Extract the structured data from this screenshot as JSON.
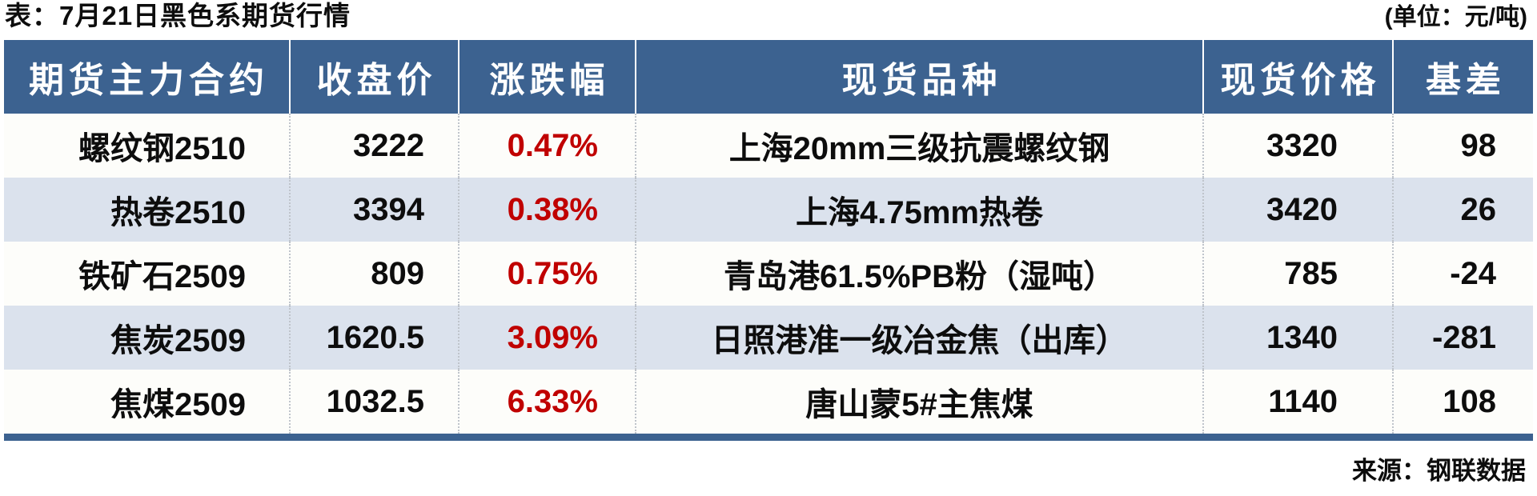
{
  "chart_data": {
    "type": "table",
    "title": "表：7月21日黑色系期货行情",
    "unit": "(单位：元/吨)",
    "source": "来源：钢联数据",
    "columns": [
      "期货主力合约",
      "收盘价",
      "涨跌幅",
      "现货品种",
      "现货价格",
      "基差"
    ],
    "rows": [
      [
        "螺纹钢2510",
        "3222",
        "0.47%",
        "上海20mm三级抗震螺纹钢",
        "3320",
        "98"
      ],
      [
        "热卷2510",
        "3394",
        "0.38%",
        "上海4.75mm热卷",
        "3420",
        "26"
      ],
      [
        "铁矿石2509",
        "809",
        "0.75%",
        "青岛港61.5%PB粉（湿吨）",
        "785",
        "-24"
      ],
      [
        "焦炭2509",
        "1620.5",
        "3.09%",
        "日照港准一级冶金焦（出库）",
        "1340",
        "-281"
      ],
      [
        "焦煤2509",
        "1032.5",
        "6.33%",
        "唐山蒙5#主焦煤",
        "1140",
        "108"
      ]
    ]
  },
  "colors": {
    "header_bg": "#3C6290",
    "header_text": "#FFFFFF",
    "stripe_row_bg": "#DBE2ED",
    "plain_row_bg": "#FDFDFA",
    "change_red": "#C00000",
    "bottom_bar": "#3C6290",
    "body_text": "#0D0D0D"
  }
}
